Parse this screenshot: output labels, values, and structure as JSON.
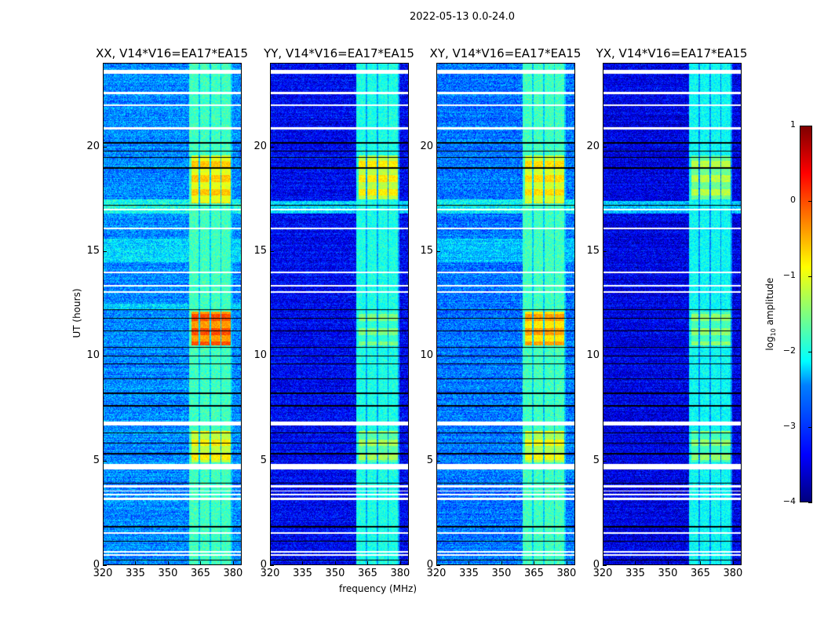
{
  "suptitle": "2022-05-13 0.0-24.0",
  "xlabel": "frequency (MHz)",
  "ylabel": "UT (hours)",
  "colorbar": {
    "label_prefix": "log",
    "label_sub": "10",
    "label_suffix": " amplitude",
    "ticks": [
      "1",
      "0",
      "−1",
      "−2",
      "−3",
      "−4"
    ],
    "tick_values": [
      1,
      0,
      -1,
      -2,
      -3,
      -4
    ],
    "range": [
      -4,
      1
    ],
    "colormap": "jet"
  },
  "x_ticks": [
    "320",
    "335",
    "350",
    "365",
    "380"
  ],
  "x_tick_values": [
    320,
    335,
    350,
    365,
    380
  ],
  "y_ticks": [
    "0",
    "5",
    "10",
    "15",
    "20"
  ],
  "y_tick_values": [
    0,
    5,
    10,
    15,
    20
  ],
  "chart_data": [
    {
      "type": "heatmap",
      "title": "XX, V14*V16=EA17*EA15",
      "xlim": [
        320,
        384
      ],
      "ylim": [
        0,
        24
      ],
      "background_log_amp": -2.7,
      "band_log_amp": -1.8,
      "band_MHz": [
        360,
        380
      ],
      "hot_blocks": [
        {
          "ut": [
            17.3,
            19.6
          ],
          "log_amp": -0.6
        },
        {
          "ut": [
            10.5,
            12.1
          ],
          "log_amp": 0.0
        },
        {
          "ut": [
            4.9,
            6.4
          ],
          "log_amp": -0.8
        }
      ],
      "bright_rows": [
        {
          "ut": [
            12.2,
            12.5
          ],
          "log_amp": -2.3
        },
        {
          "ut": [
            14.5,
            15.6
          ],
          "log_amp": -2.3
        },
        {
          "ut": [
            16.8,
            17.5
          ],
          "log_amp": -2.0
        }
      ]
    },
    {
      "type": "heatmap",
      "title": "YY, V14*V16=EA17*EA15",
      "xlim": [
        320,
        384
      ],
      "ylim": [
        0,
        24
      ],
      "background_log_amp": -3.4,
      "band_log_amp": -2.0,
      "band_MHz": [
        360,
        380
      ],
      "hot_blocks": [
        {
          "ut": [
            17.5,
            19.6
          ],
          "log_amp": -0.8
        },
        {
          "ut": [
            10.5,
            12.1
          ],
          "log_amp": -1.5
        },
        {
          "ut": [
            4.9,
            6.4
          ],
          "log_amp": -1.3
        }
      ],
      "bright_rows": [
        {
          "ut": [
            16.8,
            17.4
          ],
          "log_amp": -2.3
        }
      ]
    },
    {
      "type": "heatmap",
      "title": "XY, V14*V16=EA17*EA15",
      "xlim": [
        320,
        384
      ],
      "ylim": [
        0,
        24
      ],
      "background_log_amp": -2.8,
      "band_log_amp": -1.8,
      "band_MHz": [
        360,
        380
      ],
      "hot_blocks": [
        {
          "ut": [
            17.3,
            19.6
          ],
          "log_amp": -0.7
        },
        {
          "ut": [
            10.5,
            12.1
          ],
          "log_amp": -0.4
        },
        {
          "ut": [
            4.9,
            6.4
          ],
          "log_amp": -0.9
        }
      ],
      "bright_rows": [
        {
          "ut": [
            14.5,
            15.6
          ],
          "log_amp": -2.4
        },
        {
          "ut": [
            16.8,
            17.5
          ],
          "log_amp": -2.1
        }
      ]
    },
    {
      "type": "heatmap",
      "title": "YX, V14*V16=EA17*EA15",
      "xlim": [
        320,
        384
      ],
      "ylim": [
        0,
        24
      ],
      "background_log_amp": -3.5,
      "band_log_amp": -2.1,
      "band_MHz": [
        360,
        380
      ],
      "hot_blocks": [
        {
          "ut": [
            17.5,
            19.6
          ],
          "log_amp": -1.2
        },
        {
          "ut": [
            10.5,
            12.1
          ],
          "log_amp": -1.4
        },
        {
          "ut": [
            4.9,
            6.4
          ],
          "log_amp": -1.4
        }
      ],
      "bright_rows": [
        {
          "ut": [
            16.8,
            17.4
          ],
          "log_amp": -2.4
        }
      ]
    }
  ],
  "flagged_ut": [
    [
      0.42,
      0.5
    ],
    [
      0.58,
      0.65
    ],
    [
      1.45,
      1.55
    ],
    [
      3.1,
      3.2
    ],
    [
      3.3,
      3.4
    ],
    [
      3.5,
      3.55
    ],
    [
      3.7,
      3.8
    ],
    [
      4.55,
      4.8
    ],
    [
      6.65,
      6.85
    ],
    [
      13.0,
      13.1
    ],
    [
      13.3,
      13.4
    ],
    [
      13.95,
      14.05
    ],
    [
      16.05,
      16.15
    ],
    [
      16.95,
      17.05
    ],
    [
      20.85,
      20.95
    ],
    [
      21.95,
      22.05
    ],
    [
      22.55,
      22.65
    ],
    [
      23.5,
      23.7
    ]
  ],
  "dark_ut": [
    0.2,
    1.1,
    1.8,
    3.9,
    5.3,
    5.8,
    6.3,
    7.6,
    8.2,
    8.9,
    9.6,
    10.0,
    10.4,
    11.2,
    11.8,
    12.2,
    17.2,
    19.0,
    19.5,
    19.8,
    20.2
  ]
}
